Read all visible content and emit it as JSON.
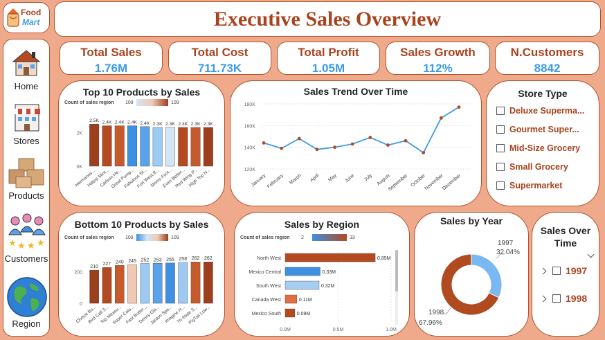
{
  "header": {
    "title": "Executive Sales Overview"
  },
  "logo": {
    "line1": "Food",
    "line2": "Mart"
  },
  "nav": [
    {
      "label": "Home",
      "icon": "house-icon"
    },
    {
      "label": "Stores",
      "icon": "store-icon"
    },
    {
      "label": "Products",
      "icon": "boxes-icon"
    },
    {
      "label": "Customers",
      "icon": "customers-icon"
    },
    {
      "label": "Region",
      "icon": "globe-icon"
    }
  ],
  "kpis": [
    {
      "label": "Total Sales",
      "value": "1.76M"
    },
    {
      "label": "Total Cost",
      "value": "711.73K"
    },
    {
      "label": "Total Profit",
      "value": "1.05M"
    },
    {
      "label": "Sales Growth",
      "value": "112%"
    },
    {
      "label": "N.Customers",
      "value": "8842"
    }
  ],
  "top10": {
    "title": "Top 10 Products by Sales",
    "legend_label": "Count of sales region",
    "legend_min": "109",
    "legend_max": "109",
    "y_ticks": [
      "0K",
      "2K"
    ],
    "bars": [
      {
        "label": "Hermanos ...",
        "value_label": "2.5K",
        "value": 2.5,
        "color": "#9d3f1d"
      },
      {
        "label": "Hilltop Mint...",
        "value_label": "2.4K",
        "value": 2.4,
        "color": "#b5491f"
      },
      {
        "label": "Carlson He...",
        "value_label": "2.4K",
        "value": 2.4,
        "color": "#c55a2c"
      },
      {
        "label": "Great Pump...",
        "value_label": "2.4K",
        "value": 2.4,
        "color": "#3f8fe3"
      },
      {
        "label": "Fabulous St...",
        "value_label": "2.4K",
        "value": 2.35,
        "color": "#5aa3eb"
      },
      {
        "label": "Fort West B...",
        "value_label": "2.3K",
        "value": 2.3,
        "color": "#9ccaf3"
      },
      {
        "label": "Moms Foot...",
        "value_label": "2.3K",
        "value": 2.3,
        "color": "#d3e5f7"
      },
      {
        "label": "Even Better...",
        "value_label": "2.3K",
        "value": 2.3,
        "color": "#b5491f"
      },
      {
        "label": "Red Wing P...",
        "value_label": "2.3K",
        "value": 2.3,
        "color": "#c55a2c"
      },
      {
        "label": "High Top N...",
        "value_label": "2.3K",
        "value": 2.3,
        "color": "#9d3f1d"
      }
    ]
  },
  "trend": {
    "title": "Sales Trend Over Time",
    "y_ticks": [
      "120K",
      "140K",
      "160K",
      "180K"
    ],
    "months": [
      "January",
      "February",
      "March",
      "April",
      "May",
      "June",
      "July",
      "August",
      "September",
      "October",
      "November",
      "December"
    ],
    "values": [
      144,
      139,
      148,
      138,
      140,
      143,
      149,
      142,
      146,
      135,
      167,
      177
    ],
    "ylim": [
      120,
      180
    ]
  },
  "store_type": {
    "title": "Store Type",
    "items": [
      "Deluxe Superma...",
      "Gourmet Super...",
      "Mid-Size Grocery",
      "Small Grocery",
      "Supermarket"
    ]
  },
  "bottom10": {
    "title": "Bottom 10 Products by Sales",
    "legend_label": "Count of sales region",
    "legend_min": "109",
    "legend_max": "109",
    "y_ticks": [
      "0",
      "200"
    ],
    "bars": [
      {
        "label": "Choice Bu...",
        "value": 210,
        "color": "#9d3f1d"
      },
      {
        "label": "Bird Call S...",
        "value": 227,
        "color": "#b5491f"
      },
      {
        "label": "Top Measu...",
        "value": 240,
        "color": "#c55a2c"
      },
      {
        "label": "Super Colo...",
        "value": 245,
        "color": "#f0c9b4"
      },
      {
        "label": "Fast Butter...",
        "value": 252,
        "color": "#9ccaf3"
      },
      {
        "label": "Denny Gla...",
        "value": 253,
        "color": "#5aa3eb"
      },
      {
        "label": "Jardon Spa...",
        "value": 255,
        "color": "#3f8fe3"
      },
      {
        "label": "Imagine H...",
        "value": 258,
        "color": "#9ccaf3"
      },
      {
        "label": "Tri-State S...",
        "value": 262,
        "color": "#c55a2c"
      },
      {
        "label": "PigTail Low...",
        "value": 262,
        "color": "#9d3f1d"
      }
    ]
  },
  "region": {
    "title": "Sales by Region",
    "legend_label": "Count of sales region",
    "legend_min": "2",
    "legend_max": "33",
    "x_ticks": [
      "0.0M",
      "0.5M",
      "1.0M"
    ],
    "bars": [
      {
        "label": "North West",
        "value": 0.85,
        "value_label": "0.85M",
        "color": "#b5491f"
      },
      {
        "label": "Mexico Central",
        "value": 0.33,
        "value_label": "0.33M",
        "color": "#3f8fe3"
      },
      {
        "label": "South West",
        "value": 0.32,
        "value_label": "0.32M",
        "color": "#a7cdf3"
      },
      {
        "label": "Canada West",
        "value": 0.11,
        "value_label": "0.11M",
        "color": "#e36e3f"
      },
      {
        "label": "Mexico South",
        "value": 0.09,
        "value_label": "0.09M",
        "color": "#b5491f"
      }
    ]
  },
  "year_donut": {
    "title": "Sales by Year",
    "slices": [
      {
        "year": "1997",
        "pct_label": "32.04%",
        "pct": 32.04,
        "color": "#7ab8f1"
      },
      {
        "year": "1998",
        "pct_label": "67.96%",
        "pct": 67.96,
        "color": "#b04a20"
      }
    ]
  },
  "year_filter": {
    "title": "Sales Over Time",
    "items": [
      "1997",
      "1998"
    ]
  },
  "chart_data": [
    {
      "type": "bar",
      "title": "Top 10 Products by Sales",
      "categories": [
        "Hermanos ...",
        "Hilltop Mint...",
        "Carlson He...",
        "Great Pump...",
        "Fabulous St...",
        "Fort West B...",
        "Moms Foot...",
        "Even Better...",
        "Red Wing P...",
        "High Top N..."
      ],
      "values": [
        2500,
        2400,
        2400,
        2400,
        2400,
        2300,
        2300,
        2300,
        2300,
        2300
      ]
    },
    {
      "type": "line",
      "title": "Sales Trend Over Time",
      "x": [
        "January",
        "February",
        "March",
        "April",
        "May",
        "June",
        "July",
        "August",
        "September",
        "October",
        "November",
        "December"
      ],
      "values": [
        144000,
        139000,
        148000,
        138000,
        140000,
        143000,
        149000,
        142000,
        146000,
        135000,
        167000,
        177000
      ],
      "ylim": [
        120000,
        180000
      ]
    },
    {
      "type": "bar",
      "title": "Bottom 10 Products by Sales",
      "categories": [
        "Choice Bu...",
        "Bird Call S...",
        "Top Measu...",
        "Super Colo...",
        "Fast Butter...",
        "Denny Gla...",
        "Jardon Spa...",
        "Imagine H...",
        "Tri-State S...",
        "PigTail Low..."
      ],
      "values": [
        210,
        227,
        240,
        245,
        252,
        253,
        255,
        258,
        262,
        262
      ]
    },
    {
      "type": "bar",
      "title": "Sales by Region",
      "categories": [
        "North West",
        "Mexico Central",
        "South West",
        "Canada West",
        "Mexico South"
      ],
      "values": [
        850000,
        330000,
        320000,
        110000,
        90000
      ]
    },
    {
      "type": "pie",
      "title": "Sales by Year",
      "categories": [
        "1997",
        "1998"
      ],
      "values": [
        32.04,
        67.96
      ]
    }
  ]
}
